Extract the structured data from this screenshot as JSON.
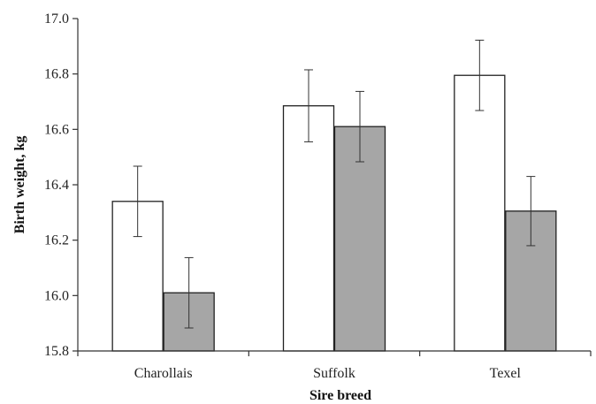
{
  "chart_data": {
    "type": "bar",
    "title": "",
    "xlabel": "Sire breed",
    "ylabel": "Birth weight, kg",
    "categories": [
      "Charollais",
      "Suffolk",
      "Texel"
    ],
    "ylim": [
      15.8,
      17.0
    ],
    "yticks": [
      "15.8",
      "16.0",
      "16.2",
      "16.4",
      "16.6",
      "16.8",
      "17.0"
    ],
    "grid": false,
    "legend": "none",
    "series": [
      {
        "values": [
          16.34,
          16.685,
          16.795
        ],
        "errors": [
          0.127,
          0.13,
          0.127
        ],
        "color": "#ffffff"
      },
      {
        "values": [
          16.01,
          16.61,
          16.305
        ],
        "errors": [
          0.127,
          0.127,
          0.125
        ],
        "color": "#a6a6a6"
      }
    ]
  }
}
